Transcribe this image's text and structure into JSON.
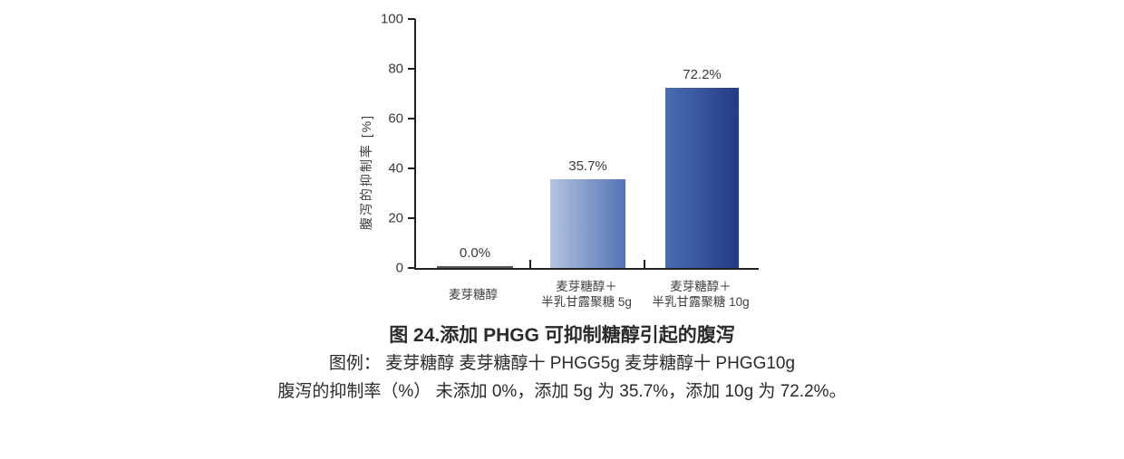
{
  "chart_data": {
    "type": "bar",
    "title": "图 24.添加 PHGG 可抑制糖醇引起的腹泻",
    "xlabel": "",
    "ylabel": "腹泻的抑制率 [%]",
    "ylim": [
      0,
      100
    ],
    "yticks": [
      0,
      20,
      40,
      60,
      80,
      100
    ],
    "grid": false,
    "legend_position": "none",
    "categories": [
      "麦芽糖醇",
      "麦芽糖醇＋半乳甘露聚糖 5g",
      "麦芽糖醇＋半乳甘露聚糖 10g"
    ],
    "values": [
      0.0,
      35.7,
      72.2
    ],
    "bar_labels": [
      "0.0%",
      "35.7%",
      "72.2%"
    ],
    "category_lines": [
      [
        "麦芽糖醇"
      ],
      [
        "麦芽糖醇＋",
        "半乳甘露聚糖 5g"
      ],
      [
        "麦芽糖醇＋",
        "半乳甘露聚糖 10g"
      ]
    ]
  },
  "caption": {
    "title": "图 24.添加 PHGG 可抑制糖醇引起的腹泻",
    "legend_line": "图例：  麦芽糖醇  麦芽糖醇十 PHGG5g  麦芽糖醇十 PHGG10g",
    "result_line": "腹泻的抑制率（%） 未添加 0%，添加 5g 为 35.7%，添加 10g 为 72.2%。"
  },
  "colors": {
    "axis": "#231f20",
    "text": "#3a3a3a",
    "bar_fills": [
      [
        "#58595b"
      ],
      [
        "#b2c4e1",
        "#5373b3"
      ],
      [
        "#4a6db1",
        "#243b85"
      ]
    ]
  }
}
